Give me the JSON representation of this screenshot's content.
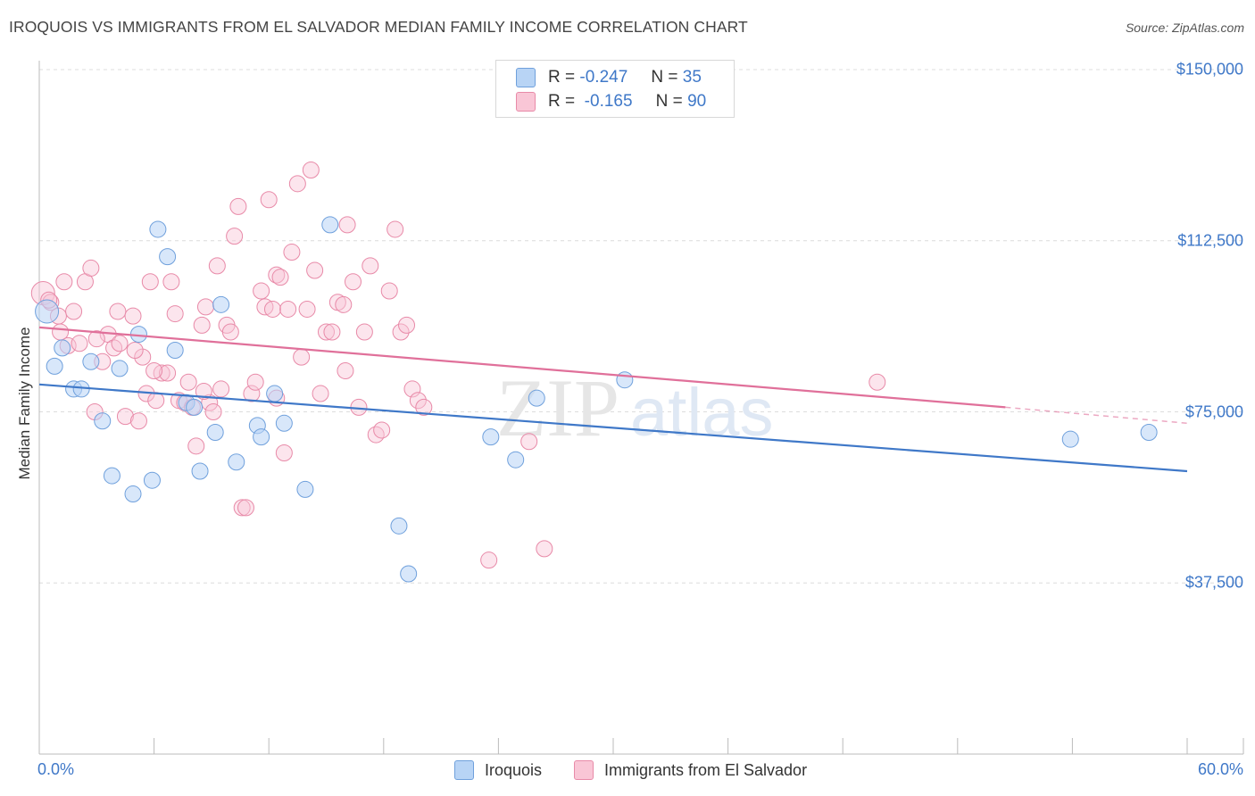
{
  "header": {
    "title": "IROQUOIS VS IMMIGRANTS FROM EL SALVADOR MEDIAN FAMILY INCOME CORRELATION CHART",
    "source": "Source: ZipAtlas.com"
  },
  "legend": {
    "rows": [
      {
        "r_label": "R =",
        "r_value": "-0.247",
        "n_label": "N =",
        "n_value": "35",
        "color": "#b8d4f5",
        "border": "#6fa0dc"
      },
      {
        "r_label": "R =",
        "r_value": "-0.165",
        "n_label": "N =",
        "n_value": "90",
        "color": "#f9c6d6",
        "border": "#e88aa8"
      }
    ]
  },
  "bottom_legend": {
    "iroquois": "Iroquois",
    "el_salvador": "Immigrants from El Salvador"
  },
  "watermark": {
    "zip": "ZIP",
    "atlas": "atlas"
  },
  "chart_data": {
    "type": "scatter",
    "title": "IROQUOIS VS IMMIGRANTS FROM EL SALVADOR MEDIAN FAMILY INCOME CORRELATION CHART",
    "xlabel": "",
    "ylabel": "Median Family Income",
    "xlim": [
      0,
      60
    ],
    "ylim": [
      0,
      155000
    ],
    "x_tick_labels": [
      "0.0%",
      "60.0%"
    ],
    "y_ticks": [
      37500,
      75000,
      112500,
      150000
    ],
    "y_tick_labels": [
      "$37,500",
      "$75,000",
      "$112,500",
      "$150,000"
    ],
    "grid": true,
    "legend_position": "top-center",
    "colors": {
      "iroquois": "#3f78c8",
      "el_salvador": "#e0709a"
    },
    "series": [
      {
        "name": "Iroquois",
        "r": -0.247,
        "n": 35,
        "trend": {
          "x": [
            0,
            60
          ],
          "y": [
            81000,
            62000
          ]
        },
        "points": [
          [
            0.4,
            97000
          ],
          [
            0.8,
            85000
          ],
          [
            1.2,
            89000
          ],
          [
            1.8,
            80000
          ],
          [
            2.2,
            80000
          ],
          [
            2.7,
            86000
          ],
          [
            3.3,
            73000
          ],
          [
            3.8,
            61000
          ],
          [
            4.2,
            84500
          ],
          [
            4.9,
            57000
          ],
          [
            5.2,
            92000
          ],
          [
            5.9,
            60000
          ],
          [
            6.2,
            115000
          ],
          [
            6.7,
            109000
          ],
          [
            7.1,
            88500
          ],
          [
            7.7,
            77000
          ],
          [
            8.1,
            76000
          ],
          [
            8.4,
            62000
          ],
          [
            9.2,
            70500
          ],
          [
            9.5,
            98500
          ],
          [
            10.3,
            64000
          ],
          [
            11.4,
            72000
          ],
          [
            11.6,
            69500
          ],
          [
            12.3,
            79000
          ],
          [
            12.8,
            72500
          ],
          [
            13.9,
            58000
          ],
          [
            15.2,
            116000
          ],
          [
            18.8,
            50000
          ],
          [
            19.3,
            39500
          ],
          [
            23.6,
            69500
          ],
          [
            24.9,
            64500
          ],
          [
            26.0,
            78000
          ],
          [
            30.6,
            82000
          ],
          [
            53.9,
            69000
          ],
          [
            58.0,
            70500
          ]
        ]
      },
      {
        "name": "Immigrants from El Salvador",
        "r": -0.165,
        "n": 90,
        "trend": {
          "x": [
            0,
            50.5
          ],
          "y": [
            93500,
            76000
          ]
        },
        "trend_dashed": {
          "x": [
            50.5,
            60
          ],
          "y": [
            76000,
            72500
          ]
        },
        "points": [
          [
            0.2,
            101000
          ],
          [
            0.6,
            99000
          ],
          [
            1.0,
            96000
          ],
          [
            1.3,
            103500
          ],
          [
            1.5,
            89500
          ],
          [
            1.8,
            97000
          ],
          [
            2.1,
            90000
          ],
          [
            2.4,
            103500
          ],
          [
            2.7,
            106500
          ],
          [
            2.9,
            75000
          ],
          [
            3.3,
            86000
          ],
          [
            3.6,
            92000
          ],
          [
            3.9,
            89000
          ],
          [
            4.2,
            90000
          ],
          [
            4.1,
            97000
          ],
          [
            4.5,
            74000
          ],
          [
            4.9,
            96000
          ],
          [
            5.2,
            73000
          ],
          [
            5.4,
            87000
          ],
          [
            5.6,
            79000
          ],
          [
            5.8,
            103500
          ],
          [
            6.1,
            77500
          ],
          [
            6.4,
            83500
          ],
          [
            6.7,
            83500
          ],
          [
            6.9,
            103500
          ],
          [
            7.1,
            96500
          ],
          [
            7.3,
            77500
          ],
          [
            7.6,
            77000
          ],
          [
            7.8,
            81500
          ],
          [
            8.0,
            76000
          ],
          [
            8.2,
            67500
          ],
          [
            8.5,
            94000
          ],
          [
            8.7,
            98000
          ],
          [
            8.9,
            77000
          ],
          [
            9.1,
            75000
          ],
          [
            9.3,
            107000
          ],
          [
            9.5,
            80000
          ],
          [
            9.8,
            94000
          ],
          [
            10.0,
            92500
          ],
          [
            10.2,
            113500
          ],
          [
            10.4,
            120000
          ],
          [
            10.6,
            54000
          ],
          [
            10.8,
            54000
          ],
          [
            11.1,
            79000
          ],
          [
            11.3,
            81500
          ],
          [
            11.6,
            101500
          ],
          [
            11.8,
            98000
          ],
          [
            12.0,
            121500
          ],
          [
            12.2,
            97500
          ],
          [
            12.4,
            105000
          ],
          [
            12.6,
            104500
          ],
          [
            12.8,
            66000
          ],
          [
            13.0,
            97500
          ],
          [
            13.2,
            110000
          ],
          [
            13.5,
            125000
          ],
          [
            13.7,
            87000
          ],
          [
            14.0,
            97500
          ],
          [
            14.2,
            128000
          ],
          [
            14.4,
            106000
          ],
          [
            14.7,
            79000
          ],
          [
            15.0,
            92500
          ],
          [
            15.3,
            92500
          ],
          [
            15.6,
            99000
          ],
          [
            15.9,
            98500
          ],
          [
            16.1,
            116000
          ],
          [
            16.4,
            103500
          ],
          [
            16.7,
            76000
          ],
          [
            17.0,
            92500
          ],
          [
            17.3,
            107000
          ],
          [
            17.6,
            70000
          ],
          [
            17.9,
            71000
          ],
          [
            18.3,
            101500
          ],
          [
            18.6,
            115000
          ],
          [
            18.9,
            92500
          ],
          [
            19.2,
            94000
          ],
          [
            19.5,
            80000
          ],
          [
            19.8,
            77500
          ],
          [
            20.1,
            76000
          ],
          [
            23.5,
            42500
          ],
          [
            25.6,
            68500
          ],
          [
            26.4,
            45000
          ],
          [
            43.8,
            81500
          ],
          [
            0.5,
            99500
          ],
          [
            1.1,
            92500
          ],
          [
            3.0,
            91000
          ],
          [
            5.0,
            88500
          ],
          [
            6.0,
            84000
          ],
          [
            8.6,
            79500
          ],
          [
            12.4,
            78000
          ],
          [
            16.0,
            84000
          ]
        ]
      }
    ]
  }
}
